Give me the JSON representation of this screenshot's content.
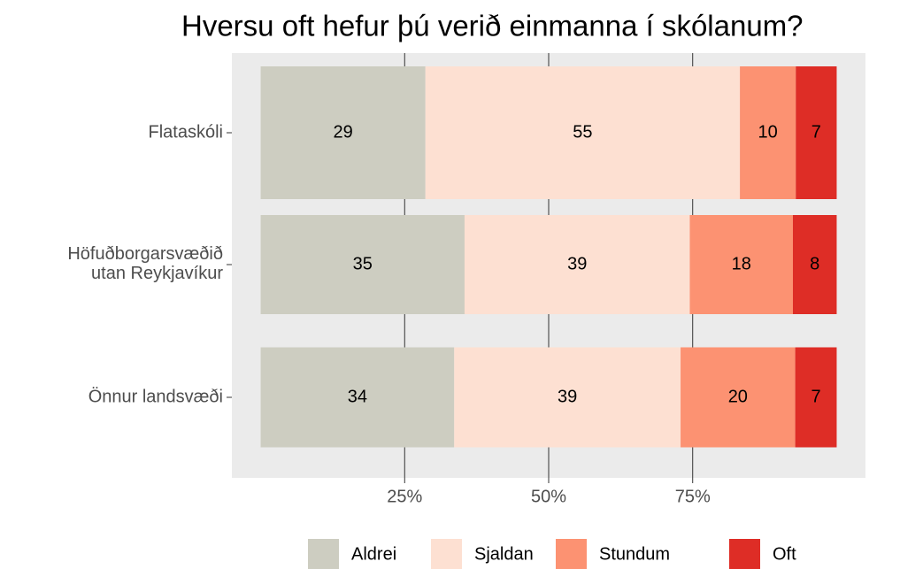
{
  "chart_data": {
    "type": "stacked_barh",
    "title": "Hversu oft hefur þú verið einmanna í skólanum?",
    "categories": [
      "Flataskóli",
      "Höfuðborgarsvæðið\nutan Reykjavíkur",
      "Önnur landsvæði"
    ],
    "series": [
      {
        "name": "Aldrei",
        "color": "#cdcdc1",
        "values": [
          28.6,
          35.4,
          33.6
        ],
        "value_labels": [
          "29",
          "35",
          "34"
        ]
      },
      {
        "name": "Sjaldan",
        "color": "#fde0d2",
        "values": [
          54.6,
          39.1,
          39.3
        ],
        "value_labels": [
          "55",
          "39",
          "39"
        ]
      },
      {
        "name": "Stundum",
        "color": "#fc9272",
        "values": [
          9.7,
          17.9,
          19.9
        ],
        "value_labels": [
          "10",
          "18",
          "20"
        ]
      },
      {
        "name": "Oft",
        "color": "#de2d26",
        "values": [
          7.1,
          7.6,
          7.2
        ],
        "value_labels": [
          "7",
          "8",
          "7"
        ]
      }
    ],
    "xlim": [
      -5,
      105
    ],
    "xticks": [
      {
        "value": 25,
        "label": "25%"
      },
      {
        "value": 50,
        "label": "50%"
      },
      {
        "value": 75,
        "label": "75%"
      }
    ],
    "grid": true,
    "legend": "bottom"
  }
}
